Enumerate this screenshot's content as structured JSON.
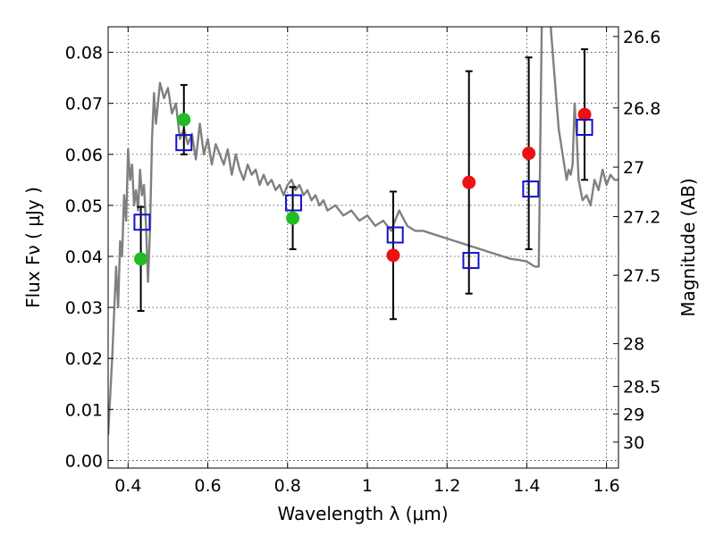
{
  "chart_data": {
    "type": "scatter",
    "title": "",
    "xlabel": "Wavelength  λ (μm)",
    "ylabel": "Flux  Fν  ( μJy )",
    "y2label": "Magnitude (AB)",
    "xlim": [
      0.35,
      1.63
    ],
    "ylim": [
      -0.0015,
      0.085
    ],
    "grid": true,
    "x_ticks": [
      0.4,
      0.6,
      0.8,
      1.0,
      1.2,
      1.4,
      1.6
    ],
    "x_tick_labels": [
      "0.4",
      "0.6",
      "0.8",
      "1",
      "1.2",
      "1.4",
      "1.6"
    ],
    "y_ticks": [
      0.0,
      0.01,
      0.02,
      0.03,
      0.04,
      0.05,
      0.06,
      0.07,
      0.08
    ],
    "y_tick_labels": [
      "0.00",
      "0.01",
      "0.02",
      "0.03",
      "0.04",
      "0.05",
      "0.06",
      "0.07",
      "0.08"
    ],
    "mag_ticks": [
      {
        "label": "26.6",
        "flux": 0.0831
      },
      {
        "label": "26.8",
        "flux": 0.0691
      },
      {
        "label": "27",
        "flux": 0.0575
      },
      {
        "label": "27.2",
        "flux": 0.0478
      },
      {
        "label": "27.5",
        "flux": 0.0363
      },
      {
        "label": "28",
        "flux": 0.0229
      },
      {
        "label": "28.5",
        "flux": 0.0145
      },
      {
        "label": "29",
        "flux": 0.0091
      },
      {
        "label": "30",
        "flux": 0.0036
      }
    ],
    "series": [
      {
        "name": "model spectrum",
        "kind": "line",
        "color": "#808080",
        "x": [
          0.35,
          0.36,
          0.37,
          0.375,
          0.38,
          0.385,
          0.39,
          0.395,
          0.4,
          0.405,
          0.41,
          0.415,
          0.42,
          0.425,
          0.43,
          0.435,
          0.44,
          0.445,
          0.45,
          0.455,
          0.46,
          0.465,
          0.47,
          0.48,
          0.49,
          0.5,
          0.51,
          0.52,
          0.53,
          0.54,
          0.55,
          0.56,
          0.57,
          0.58,
          0.59,
          0.6,
          0.61,
          0.62,
          0.63,
          0.64,
          0.65,
          0.66,
          0.67,
          0.68,
          0.69,
          0.7,
          0.71,
          0.72,
          0.73,
          0.74,
          0.75,
          0.76,
          0.77,
          0.78,
          0.79,
          0.8,
          0.81,
          0.82,
          0.83,
          0.84,
          0.85,
          0.86,
          0.87,
          0.88,
          0.89,
          0.9,
          0.92,
          0.94,
          0.96,
          0.98,
          1.0,
          1.02,
          1.04,
          1.06,
          1.08,
          1.1,
          1.12,
          1.14,
          1.16,
          1.18,
          1.2,
          1.22,
          1.24,
          1.26,
          1.28,
          1.3,
          1.32,
          1.34,
          1.36,
          1.38,
          1.4,
          1.41,
          1.42,
          1.43,
          1.44,
          1.45,
          1.46,
          1.47,
          1.48,
          1.49,
          1.5,
          1.505,
          1.51,
          1.515,
          1.52,
          1.525,
          1.53,
          1.535,
          1.54,
          1.55,
          1.56,
          1.57,
          1.58,
          1.59,
          1.6,
          1.61,
          1.62,
          1.63
        ],
        "values": [
          0.005,
          0.02,
          0.038,
          0.03,
          0.043,
          0.04,
          0.052,
          0.047,
          0.061,
          0.055,
          0.058,
          0.05,
          0.053,
          0.049,
          0.057,
          0.052,
          0.054,
          0.046,
          0.035,
          0.045,
          0.063,
          0.072,
          0.066,
          0.074,
          0.071,
          0.073,
          0.068,
          0.07,
          0.063,
          0.065,
          0.062,
          0.064,
          0.059,
          0.066,
          0.06,
          0.063,
          0.058,
          0.062,
          0.06,
          0.058,
          0.061,
          0.056,
          0.06,
          0.057,
          0.055,
          0.058,
          0.056,
          0.057,
          0.054,
          0.056,
          0.054,
          0.055,
          0.053,
          0.054,
          0.052,
          0.054,
          0.055,
          0.053,
          0.054,
          0.052,
          0.053,
          0.051,
          0.052,
          0.05,
          0.051,
          0.049,
          0.05,
          0.048,
          0.049,
          0.047,
          0.048,
          0.046,
          0.047,
          0.045,
          0.049,
          0.046,
          0.045,
          0.045,
          0.0445,
          0.044,
          0.0435,
          0.043,
          0.0425,
          0.042,
          0.0415,
          0.041,
          0.0405,
          0.04,
          0.0395,
          0.0393,
          0.039,
          0.0385,
          0.038,
          0.038,
          0.1,
          0.09,
          0.085,
          0.075,
          0.065,
          0.06,
          0.055,
          0.057,
          0.056,
          0.058,
          0.07,
          0.064,
          0.055,
          0.053,
          0.051,
          0.052,
          0.05,
          0.055,
          0.053,
          0.057,
          0.054,
          0.056,
          0.055,
          0.055
        ]
      },
      {
        "name": "observed (green)",
        "kind": "points",
        "color": "#22bb22",
        "x": [
          0.432,
          0.54,
          0.813
        ],
        "values": [
          0.0395,
          0.0668,
          0.0475
        ],
        "err": [
          0.0102,
          0.0068,
          0.0061
        ]
      },
      {
        "name": "observed (red)",
        "kind": "points",
        "color": "#ee1111",
        "x": [
          1.065,
          1.255,
          1.405,
          1.545
        ],
        "values": [
          0.0402,
          0.0545,
          0.0602,
          0.0678
        ],
        "err": [
          0.0125,
          0.0218,
          0.0188,
          0.0128
        ]
      },
      {
        "name": "model photometry",
        "kind": "squares",
        "color": "#1111cc",
        "x": [
          0.435,
          0.54,
          0.815,
          1.07,
          1.26,
          1.41,
          1.545
        ],
        "values": [
          0.0467,
          0.0623,
          0.0505,
          0.0442,
          0.0392,
          0.0532,
          0.0653
        ]
      }
    ]
  }
}
